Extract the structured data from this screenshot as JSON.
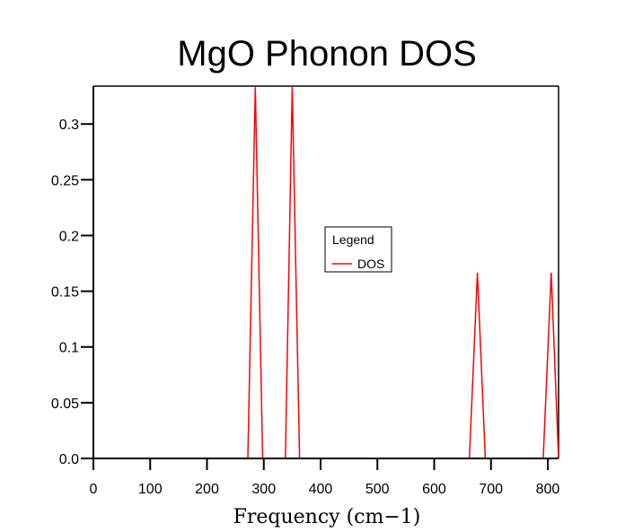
{
  "chart_data": {
    "type": "line",
    "title": "MgO Phonon DOS",
    "xlabel": "Frequency (cm−1)",
    "ylabel": "",
    "xlim": [
      0,
      819
    ],
    "ylim": [
      0,
      0.334
    ],
    "grid": false,
    "x_ticks": [
      0,
      100,
      200,
      300,
      400,
      500,
      600,
      700,
      800
    ],
    "x_tick_labels": [
      "0",
      "100",
      "200",
      "300",
      "400",
      "500",
      "600",
      "700",
      "800"
    ],
    "y_ticks": [
      0,
      0.05,
      0.1,
      0.15,
      0.2,
      0.25,
      0.3
    ],
    "y_tick_labels": [
      "0.0",
      "0.05",
      "0.1",
      "0.15",
      "0.2",
      "0.25",
      "0.3"
    ],
    "legend": {
      "title": "Legend",
      "placement": "center"
    },
    "series": [
      {
        "name": "DOS",
        "color": "#ff0000",
        "x": [
          0,
          272,
          285,
          298,
          338,
          350,
          363,
          662,
          676,
          690,
          792,
          806,
          819
        ],
        "y": [
          0,
          0,
          0.333,
          0,
          0,
          0.333,
          0,
          0,
          0.1667,
          0,
          0,
          0.1667,
          0
        ]
      }
    ]
  }
}
